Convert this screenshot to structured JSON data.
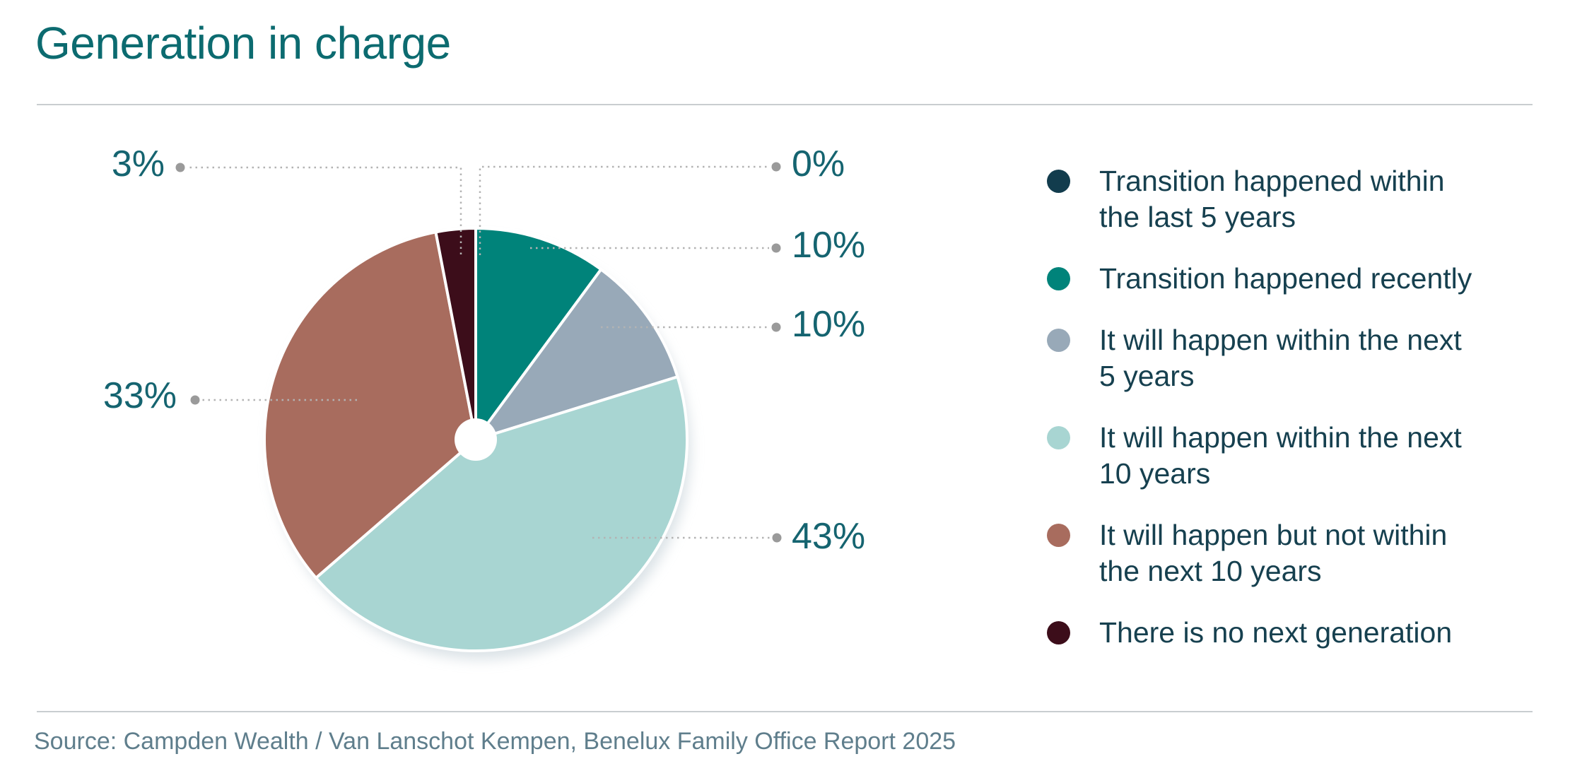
{
  "header": {
    "title": "Generation in charge"
  },
  "source": {
    "text": "Source: Campden Wealth / Van Lanschot Kempen, Benelux Family Office Report 2025"
  },
  "colors": {
    "title_teal": "#0c6b70",
    "pct_label_teal": "#156470",
    "legend_text": "#16404f",
    "source_text": "#5f7e8c",
    "leader_line": "#b3b3b3",
    "leader_dot": "#9a9a9a",
    "divider": "#c9cdd0",
    "pie_shadow": "#d4dde2"
  },
  "chart_data": {
    "type": "pie",
    "title": "Generation in charge",
    "direction": "clockwise",
    "start_angle_deg": 0,
    "donut_hole": true,
    "legend_position": "right",
    "segments": [
      {
        "label": "Transition happened within the last 5 years",
        "value": 0,
        "pct_label": "0%",
        "color": "#123c4d"
      },
      {
        "label": "Transition happened recently",
        "value": 10,
        "pct_label": "10%",
        "color": "#00837a"
      },
      {
        "label": "It will happen within the next 5 years",
        "value": 10,
        "pct_label": "10%",
        "color": "#98a9b8"
      },
      {
        "label": "It will happen within the next 10 years",
        "value": 43,
        "pct_label": "43%",
        "color": "#a8d5d2"
      },
      {
        "label": "It will happen but not within the next 10 years",
        "value": 33,
        "pct_label": "33%",
        "color": "#a86c5e"
      },
      {
        "label": "There is no next generation",
        "value": 3,
        "pct_label": "3%",
        "color": "#3c0d1a"
      }
    ]
  },
  "legend": {
    "items": [
      {
        "lines": [
          "Transition happened within",
          "the last 5 years"
        ],
        "color": "#123c4d"
      },
      {
        "lines": [
          "Transition happened recently"
        ],
        "color": "#00837a"
      },
      {
        "lines": [
          "It will happen within the next",
          "5 years"
        ],
        "color": "#98a9b8"
      },
      {
        "lines": [
          "It will happen within the next",
          "10 years"
        ],
        "color": "#a8d5d2"
      },
      {
        "lines": [
          "It will happen but not within",
          "the next 10 years"
        ],
        "color": "#a86c5e"
      },
      {
        "lines": [
          "There is no next generation"
        ],
        "color": "#3c0d1a"
      }
    ]
  }
}
